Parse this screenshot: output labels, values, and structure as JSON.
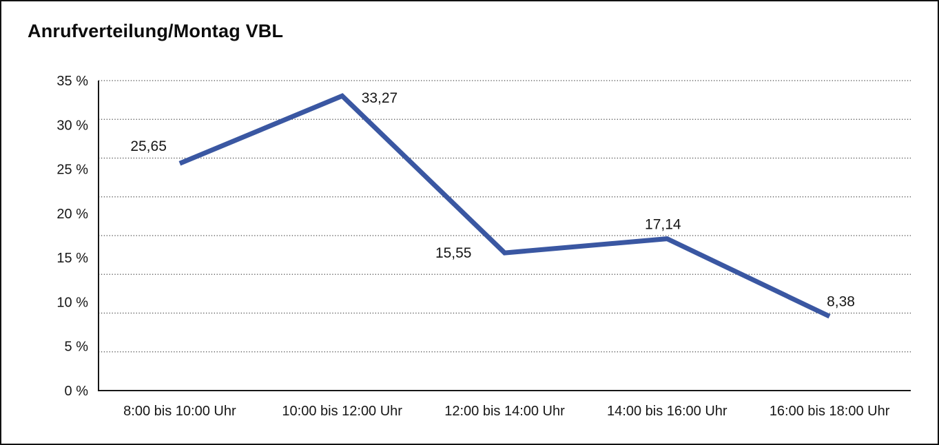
{
  "chart_data": {
    "type": "line",
    "title": "Anrufverteilung/Montag VBL",
    "categories": [
      "8:00 bis 10:00 Uhr",
      "10:00 bis 12:00 Uhr",
      "12:00 bis 14:00 Uhr",
      "14:00 bis 16:00 Uhr",
      "16:00 bis 18:00 Uhr"
    ],
    "values": [
      25.65,
      33.27,
      15.55,
      17.14,
      8.38
    ],
    "value_labels": [
      "25,65",
      "33,27",
      "15,55",
      "17,14",
      "8,38"
    ],
    "value_label_positions": [
      "above-left",
      "right",
      "left",
      "above",
      "above-right"
    ],
    "xlabel": "",
    "ylabel": "",
    "ylim": [
      0,
      35
    ],
    "yticks": {
      "values": [
        35,
        30,
        25,
        20,
        15,
        10,
        5,
        0
      ],
      "labels": [
        "35 %",
        "30 %",
        "25 %",
        "20 %",
        "15 %",
        "10 %",
        "5 %",
        "0 %"
      ]
    },
    "grid": {
      "visible": true,
      "style": "dotted",
      "horizontal_divisions": 8
    },
    "legend": "none",
    "line_color": "#3A57A2",
    "axis_color": "#161616",
    "grid_color": "#4a4a4a",
    "text_color": "#161616",
    "background_color": "#ffffff"
  }
}
